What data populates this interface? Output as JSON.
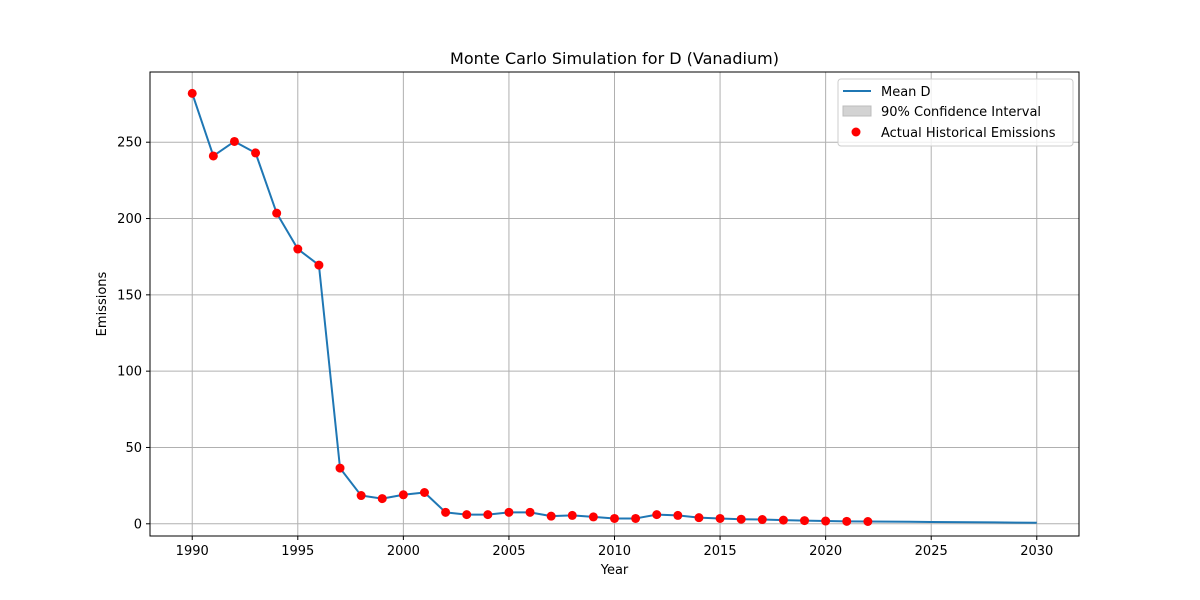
{
  "chart_data": {
    "type": "line",
    "title": "Monte Carlo Simulation for D (Vanadium)",
    "xlabel": "Year",
    "ylabel": "Emissions",
    "xlim": [
      1988,
      2032
    ],
    "ylim": [
      -8,
      296
    ],
    "xticks": [
      1990,
      1995,
      2000,
      2005,
      2010,
      2015,
      2020,
      2025,
      2030
    ],
    "yticks": [
      0,
      50,
      100,
      150,
      200,
      250
    ],
    "grid": true,
    "legend_position": "top-right",
    "legend": {
      "mean_label": "Mean D",
      "ci_label": "90% Confidence Interval",
      "actual_label": "Actual Historical Emissions"
    },
    "colors": {
      "mean_line": "#1f77b4",
      "actual_points": "#ff0000",
      "confidence_interval": "#d3d3d3",
      "grid": "#b0b0b0"
    },
    "mean_series": {
      "name": "Mean D",
      "x": [
        1990,
        1991,
        1992,
        1993,
        1994,
        1995,
        1996,
        1997,
        1998,
        1999,
        2000,
        2001,
        2002,
        2003,
        2004,
        2005,
        2006,
        2007,
        2008,
        2009,
        2010,
        2011,
        2012,
        2013,
        2014,
        2015,
        2016,
        2017,
        2018,
        2019,
        2020,
        2021,
        2022,
        2023,
        2024,
        2025,
        2026,
        2027,
        2028,
        2029,
        2030
      ],
      "y": [
        282,
        241,
        250.5,
        243,
        203.5,
        180,
        169.5,
        36.5,
        18.5,
        16.5,
        19,
        20.5,
        7.5,
        6,
        6,
        7.5,
        7.5,
        5,
        5.5,
        4.5,
        3.5,
        3.5,
        6,
        5.5,
        4,
        3.5,
        3,
        2.8,
        2.4,
        2.1,
        1.8,
        1.6,
        1.5,
        1.4,
        1.3,
        1.2,
        1.1,
        1.0,
        0.9,
        0.8,
        0.7
      ]
    },
    "actual_series": {
      "name": "Actual Historical Emissions",
      "x": [
        1990,
        1991,
        1992,
        1993,
        1994,
        1995,
        1996,
        1997,
        1998,
        1999,
        2000,
        2001,
        2002,
        2003,
        2004,
        2005,
        2006,
        2007,
        2008,
        2009,
        2010,
        2011,
        2012,
        2013,
        2014,
        2015,
        2016,
        2017,
        2018,
        2019,
        2020,
        2021,
        2022
      ],
      "y": [
        282,
        241,
        250.5,
        243,
        203.5,
        180,
        169.5,
        36.5,
        18.5,
        16.5,
        19,
        20.5,
        7.5,
        6,
        6,
        7.5,
        7.5,
        5,
        5.5,
        4.5,
        3.5,
        3.5,
        6,
        5.5,
        4,
        3.5,
        3,
        2.8,
        2.4,
        2.1,
        1.8,
        1.6,
        1.5
      ]
    }
  }
}
